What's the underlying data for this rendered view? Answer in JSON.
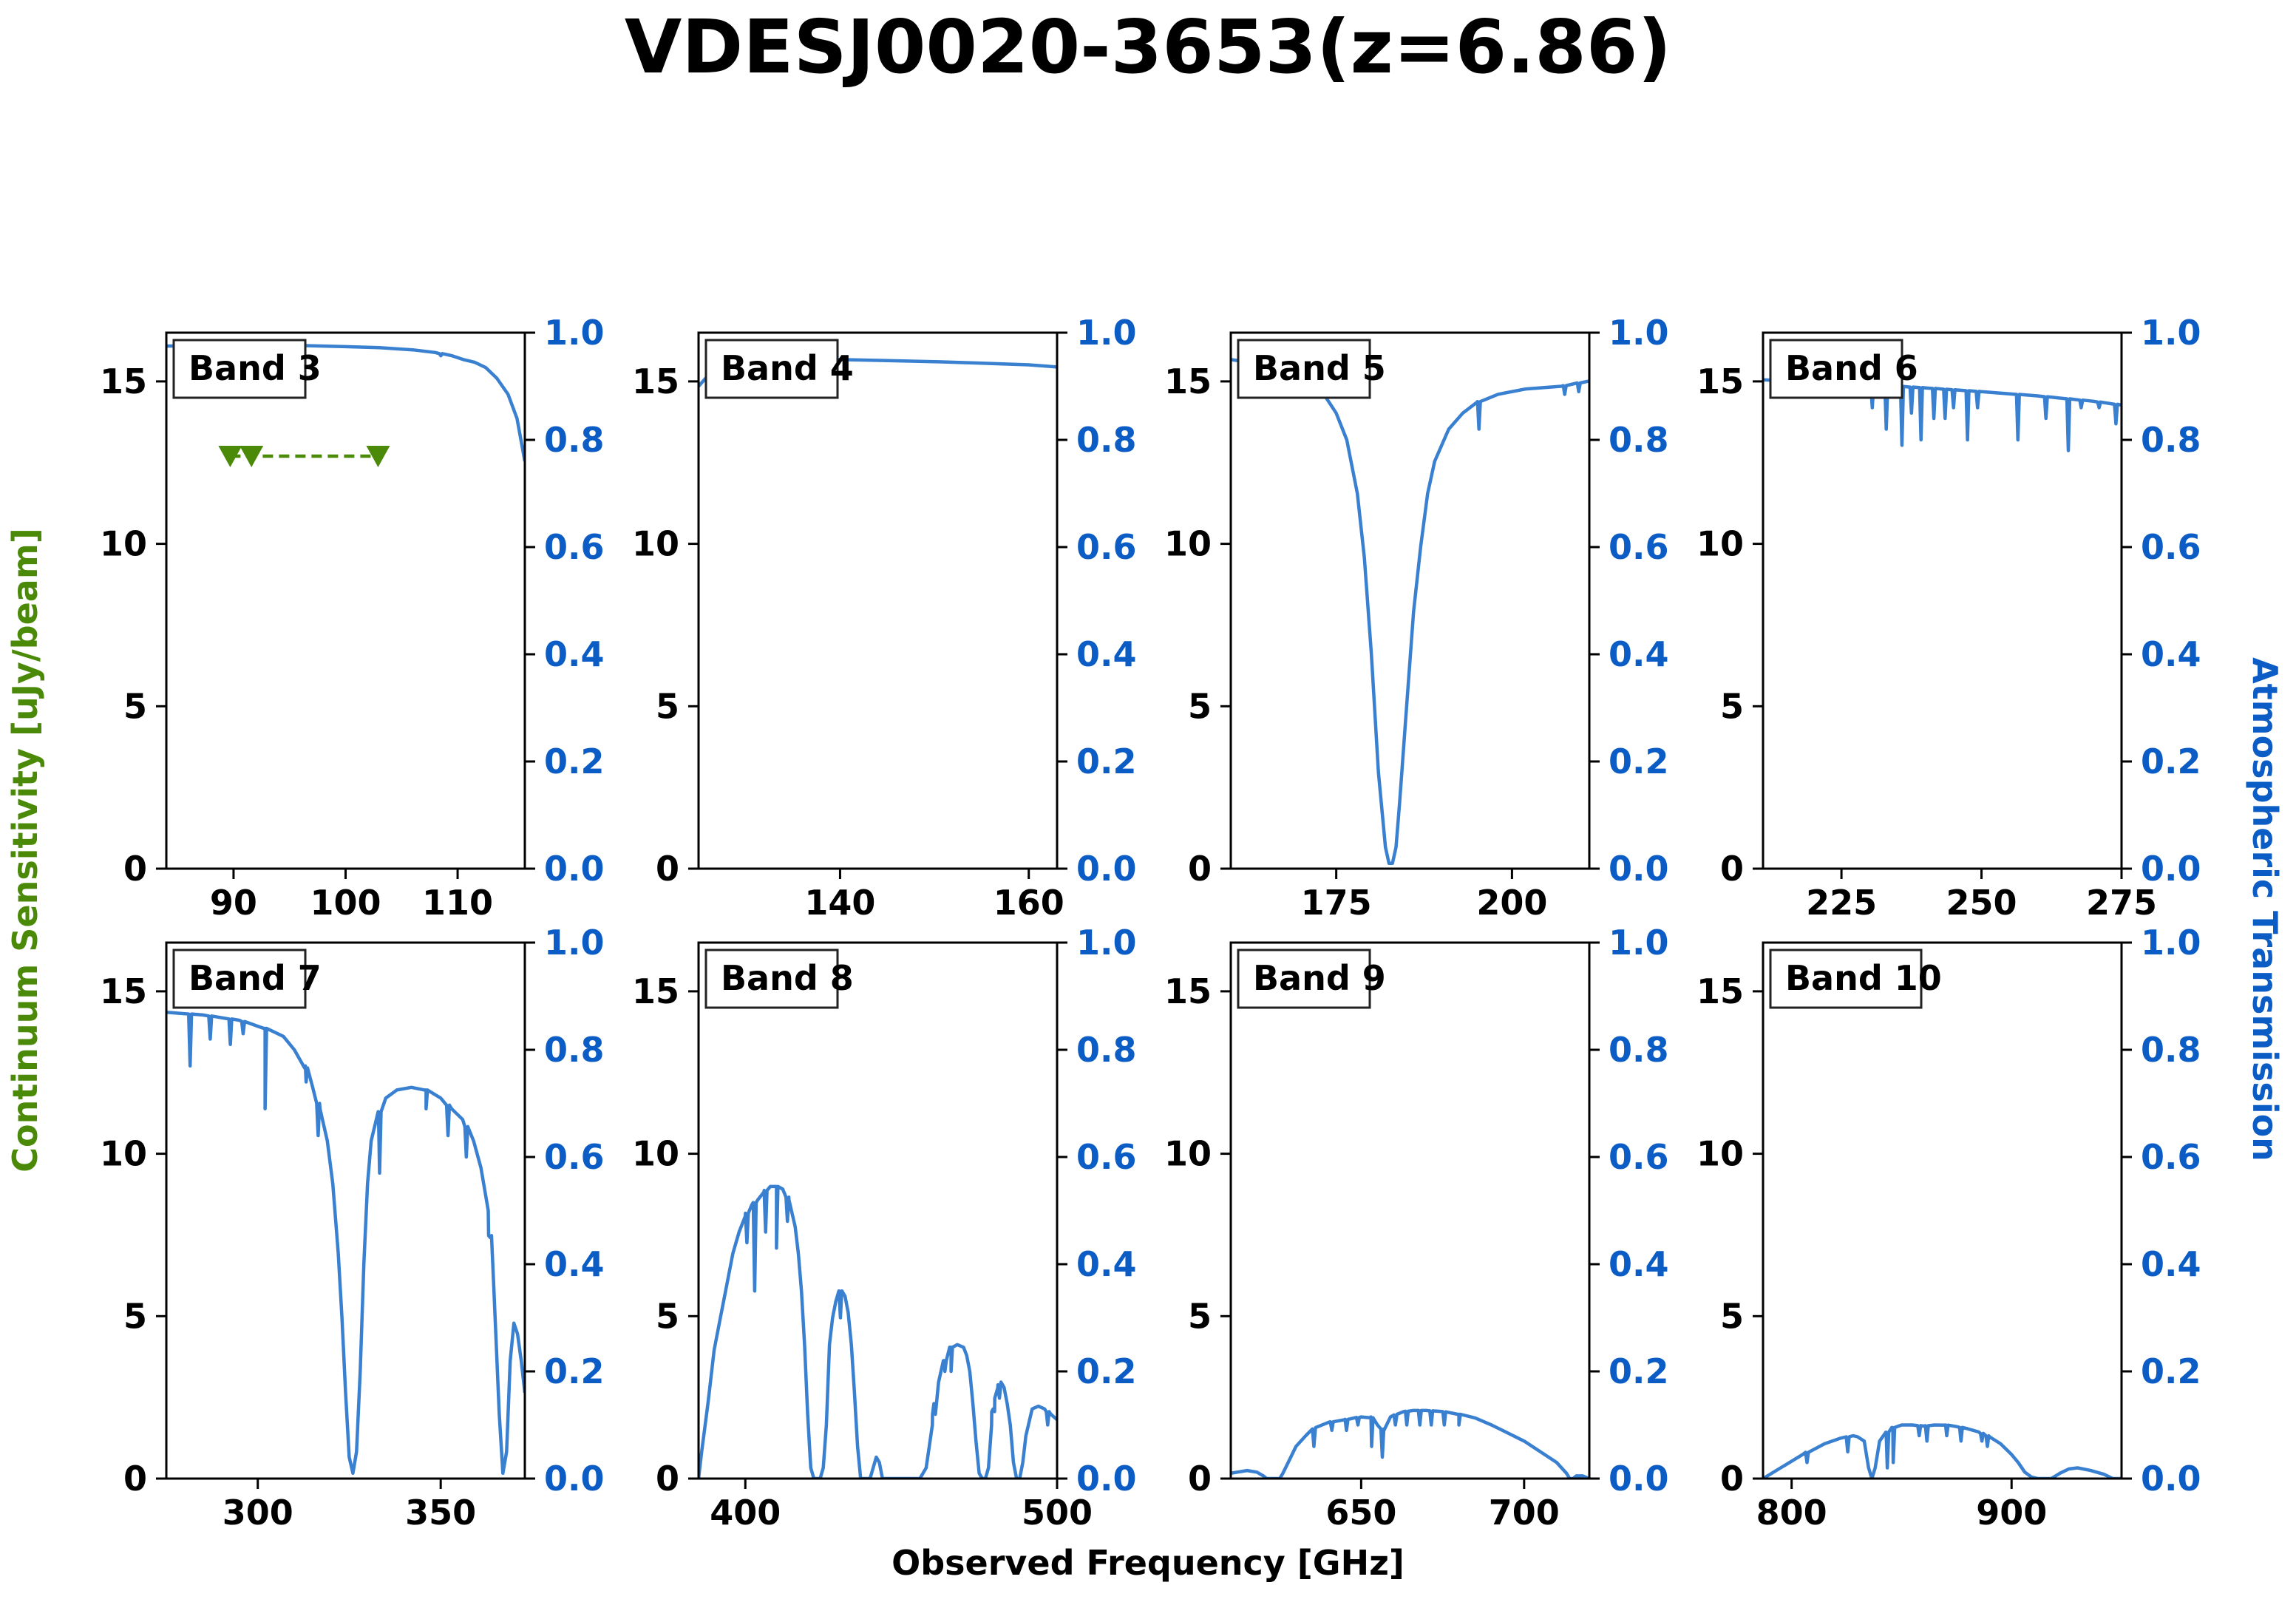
{
  "figure": {
    "title": "VDESJ0020-3653(z=6.86)",
    "xlabel": "Observed Frequency [GHz]",
    "ylabel_left": "Continuum Sensitivity [uJy/beam]",
    "ylabel_right": "Atmospheric Transmission"
  },
  "colors": {
    "transmission": "#3a80d0",
    "sensitivity": "#4b8a08",
    "right_axis": "#0b5cc4",
    "frame": "#000000"
  },
  "chart_data": [
    {
      "type": "line",
      "band": "Band 3",
      "xlim": [
        84,
        116
      ],
      "xticks": [
        90,
        100,
        110
      ],
      "ylim_left": [
        0,
        16.5
      ],
      "yticks_left": [
        0,
        5,
        10,
        15
      ],
      "ylim_right": [
        0,
        1
      ],
      "yticks_right": [
        0.0,
        0.2,
        0.4,
        0.6,
        0.8,
        1.0
      ],
      "transmission": {
        "x": [
          84,
          88,
          92,
          96,
          100,
          103,
          106,
          108,
          109.5,
          110.5,
          111.5,
          112.5,
          113.5,
          114.5,
          115.3,
          116
        ],
        "y": [
          0.975,
          0.976,
          0.977,
          0.976,
          0.974,
          0.972,
          0.968,
          0.963,
          0.957,
          0.95,
          0.945,
          0.935,
          0.915,
          0.885,
          0.84,
          0.76
        ],
        "dips": [
          [
            95.5,
            0.968
          ],
          [
            108.5,
            0.957
          ]
        ]
      },
      "sensitivity_limits": {
        "x": [
          89.7,
          91.6,
          102.9
        ],
        "y": [
          12.7,
          12.7,
          12.7
        ],
        "style": "dashed",
        "marker": "down-triangle"
      }
    },
    {
      "type": "line",
      "band": "Band 4",
      "xlim": [
        125,
        163
      ],
      "xticks": [
        140,
        160
      ],
      "ylim_left": [
        0,
        16.5
      ],
      "yticks_left": [
        0,
        5,
        10,
        15
      ],
      "ylim_right": [
        0,
        1
      ],
      "yticks_right": [
        0.0,
        0.2,
        0.4,
        0.6,
        0.8,
        1.0
      ],
      "transmission": {
        "x": [
          125,
          126,
          127,
          128.5,
          131,
          135,
          140,
          145,
          150,
          155,
          160,
          163
        ],
        "y": [
          0.9,
          0.92,
          0.93,
          0.935,
          0.94,
          0.945,
          0.95,
          0.948,
          0.946,
          0.943,
          0.94,
          0.936
        ]
      }
    },
    {
      "type": "line",
      "band": "Band 5",
      "xlim": [
        160,
        211
      ],
      "xticks": [
        175,
        200
      ],
      "ylim_left": [
        0,
        16.5
      ],
      "yticks_left": [
        0,
        5,
        10,
        15
      ],
      "ylim_right": [
        0,
        1
      ],
      "yticks_right": [
        0.0,
        0.2,
        0.4,
        0.6,
        0.8,
        1.0
      ],
      "transmission": {
        "x": [
          160,
          165,
          168,
          171,
          173,
          175,
          176.5,
          178,
          179,
          180,
          181,
          182,
          182.5,
          183,
          183.5,
          184,
          185,
          186,
          187,
          188,
          189,
          191,
          193,
          195,
          198,
          202,
          207,
          211
        ],
        "y": [
          0.95,
          0.94,
          0.93,
          0.91,
          0.89,
          0.85,
          0.8,
          0.7,
          0.58,
          0.4,
          0.18,
          0.04,
          0.01,
          0.01,
          0.04,
          0.12,
          0.3,
          0.48,
          0.6,
          0.7,
          0.76,
          0.82,
          0.85,
          0.87,
          0.885,
          0.895,
          0.9,
          0.91
        ],
        "dips": [
          [
            167.5,
            0.88
          ],
          [
            195.3,
            0.82
          ],
          [
            207.5,
            0.885
          ],
          [
            209.5,
            0.89
          ]
        ]
      }
    },
    {
      "type": "line",
      "band": "Band 6",
      "xlim": [
        211,
        275
      ],
      "xticks": [
        225,
        250,
        275
      ],
      "ylim_left": [
        0,
        16.5
      ],
      "yticks_left": [
        0,
        5,
        10,
        15
      ],
      "ylim_right": [
        0,
        1
      ],
      "yticks_right": [
        0.0,
        0.2,
        0.4,
        0.6,
        0.8,
        1.0
      ],
      "transmission": {
        "x": [
          211,
          220,
          230,
          240,
          250,
          260,
          270,
          275
        ],
        "y": [
          0.912,
          0.908,
          0.903,
          0.897,
          0.89,
          0.882,
          0.872,
          0.865
        ],
        "dips": [
          [
            215.5,
            0.895
          ],
          [
            230.5,
            0.86
          ],
          [
            233,
            0.82
          ],
          [
            235.8,
            0.79
          ],
          [
            237.5,
            0.85
          ],
          [
            239.2,
            0.8
          ],
          [
            241.5,
            0.84
          ],
          [
            243.5,
            0.84
          ],
          [
            245,
            0.86
          ],
          [
            247.5,
            0.8
          ],
          [
            249.3,
            0.86
          ],
          [
            256.5,
            0.8
          ],
          [
            261.5,
            0.84
          ],
          [
            265.5,
            0.78
          ],
          [
            267.8,
            0.86
          ],
          [
            271,
            0.86
          ],
          [
            274,
            0.83
          ]
        ]
      }
    },
    {
      "type": "line",
      "band": "Band 7",
      "xlim": [
        275,
        373
      ],
      "xticks": [
        300,
        350
      ],
      "ylim_left": [
        0,
        16.5
      ],
      "yticks_left": [
        0,
        5,
        10,
        15
      ],
      "ylim_right": [
        0,
        1
      ],
      "yticks_right": [
        0.0,
        0.2,
        0.4,
        0.6,
        0.8,
        1.0
      ],
      "transmission": {
        "x": [
          275,
          285,
          295,
          302,
          307,
          310,
          313,
          315,
          317,
          319,
          320.5,
          322,
          323,
          324,
          325,
          326,
          327,
          328,
          329,
          330,
          331,
          333,
          335,
          338,
          342,
          346,
          350,
          353,
          356,
          359,
          361,
          363,
          364.5,
          366,
          367,
          368,
          369,
          370,
          371,
          372,
          373
        ],
        "y": [
          0.87,
          0.865,
          0.855,
          0.84,
          0.825,
          0.8,
          0.77,
          0.73,
          0.69,
          0.63,
          0.55,
          0.42,
          0.3,
          0.16,
          0.04,
          0.01,
          0.05,
          0.2,
          0.4,
          0.55,
          0.63,
          0.68,
          0.71,
          0.725,
          0.73,
          0.725,
          0.71,
          0.69,
          0.67,
          0.63,
          0.58,
          0.5,
          0.36,
          0.12,
          0.01,
          0.05,
          0.22,
          0.29,
          0.27,
          0.22,
          0.16
        ],
        "dips": [
          [
            281.5,
            0.77
          ],
          [
            287,
            0.82
          ],
          [
            292.5,
            0.81
          ],
          [
            296,
            0.83
          ],
          [
            302,
            0.69
          ],
          [
            313.2,
            0.74
          ],
          [
            316.5,
            0.64
          ],
          [
            333.3,
            0.57
          ],
          [
            346,
            0.69
          ],
          [
            352,
            0.64
          ],
          [
            357,
            0.6
          ],
          [
            363.5,
            0.45
          ]
        ]
      }
    },
    {
      "type": "line",
      "band": "Band 8",
      "xlim": [
        385,
        500
      ],
      "xticks": [
        400,
        500
      ],
      "ylim_left": [
        0,
        16.5
      ],
      "yticks_left": [
        0,
        5,
        10,
        15
      ],
      "ylim_right": [
        0,
        1
      ],
      "yticks_right": [
        0.0,
        0.2,
        0.4,
        0.6,
        0.8,
        1.0
      ],
      "transmission": {
        "x": [
          385,
          386,
          388,
          390,
          392,
          394,
          396,
          398,
          400,
          402,
          404,
          406,
          408,
          410,
          412,
          414,
          416,
          417,
          418,
          419,
          420,
          421,
          422,
          423,
          424,
          425,
          426,
          427,
          428,
          429,
          430,
          431,
          432,
          433,
          434,
          435,
          436,
          437,
          438,
          440,
          441,
          442,
          443,
          444,
          446,
          448,
          450,
          452,
          454,
          456,
          458,
          460,
          462,
          464,
          466,
          468,
          470,
          471,
          472,
          473,
          474,
          475,
          476,
          477,
          478,
          479,
          480,
          481,
          482,
          483,
          484,
          485,
          486,
          487,
          488,
          489,
          490,
          492,
          494,
          496,
          498,
          500
        ],
        "y": [
          0.0,
          0.05,
          0.14,
          0.24,
          0.3,
          0.36,
          0.42,
          0.46,
          0.49,
          0.51,
          0.52,
          0.535,
          0.545,
          0.545,
          0.54,
          0.52,
          0.47,
          0.42,
          0.35,
          0.25,
          0.12,
          0.02,
          0.0,
          0.0,
          0.0,
          0.02,
          0.1,
          0.25,
          0.3,
          0.33,
          0.35,
          0.35,
          0.34,
          0.31,
          0.25,
          0.16,
          0.06,
          0.0,
          0.0,
          0.0,
          0.02,
          0.04,
          0.03,
          0.0,
          0.0,
          0.0,
          0.0,
          0.0,
          0.0,
          0.0,
          0.02,
          0.1,
          0.18,
          0.22,
          0.245,
          0.25,
          0.245,
          0.23,
          0.2,
          0.14,
          0.07,
          0.01,
          0.0,
          0.0,
          0.02,
          0.1,
          0.15,
          0.17,
          0.18,
          0.17,
          0.14,
          0.1,
          0.03,
          0.0,
          0.0,
          0.03,
          0.08,
          0.13,
          0.135,
          0.13,
          0.12,
          0.11
        ],
        "dips": [
          [
            400.5,
            0.44
          ],
          [
            403,
            0.35
          ],
          [
            406.5,
            0.46
          ],
          [
            410,
            0.43
          ],
          [
            413.5,
            0.48
          ],
          [
            430.5,
            0.3
          ],
          [
            460.5,
            0.14
          ],
          [
            464,
            0.2
          ],
          [
            466,
            0.2
          ],
          [
            479.5,
            0.13
          ],
          [
            481.5,
            0.15
          ],
          [
            497,
            0.1
          ]
        ]
      }
    },
    {
      "type": "line",
      "band": "Band 9",
      "xlim": [
        610,
        720
      ],
      "xticks": [
        650,
        700
      ],
      "ylim_left": [
        0,
        16.5
      ],
      "yticks_left": [
        0,
        5,
        10,
        15
      ],
      "ylim_right": [
        0,
        1
      ],
      "yticks_right": [
        0.0,
        0.2,
        0.4,
        0.6,
        0.8,
        1.0
      ],
      "transmission": {
        "x": [
          610,
          612,
          615,
          618,
          620,
          621,
          623,
          625,
          626,
          628,
          630,
          633,
          636,
          640,
          645,
          650,
          653,
          655,
          657,
          659,
          661,
          663,
          666,
          670,
          675,
          680,
          685,
          690,
          695,
          700,
          705,
          710,
          713,
          714,
          715,
          716,
          718,
          720
        ],
        "y": [
          0.01,
          0.012,
          0.015,
          0.012,
          0.005,
          0.0,
          0.0,
          0.0,
          0.01,
          0.035,
          0.06,
          0.08,
          0.095,
          0.105,
          0.11,
          0.115,
          0.115,
          0.1,
          0.09,
          0.115,
          0.12,
          0.125,
          0.127,
          0.127,
          0.125,
          0.12,
          0.113,
          0.1,
          0.085,
          0.07,
          0.05,
          0.03,
          0.01,
          0.0,
          0.0,
          0.005,
          0.005,
          0.0
        ],
        "dips": [
          [
            635.5,
            0.06
          ],
          [
            641,
            0.09
          ],
          [
            645.5,
            0.09
          ],
          [
            649,
            0.1
          ],
          [
            653.2,
            0.06
          ],
          [
            656.5,
            0.04
          ],
          [
            660.5,
            0.1
          ],
          [
            664,
            0.1
          ],
          [
            668,
            0.1
          ],
          [
            671.5,
            0.1
          ],
          [
            675.5,
            0.1
          ],
          [
            680,
            0.1
          ]
        ]
      }
    },
    {
      "type": "line",
      "band": "Band 10",
      "xlim": [
        787,
        950
      ],
      "xticks": [
        800,
        900
      ],
      "ylim_left": [
        0,
        16.5
      ],
      "yticks_left": [
        0,
        5,
        10,
        15
      ],
      "ylim_right": [
        0,
        1
      ],
      "yticks_right": [
        0.0,
        0.2,
        0.4,
        0.6,
        0.8,
        1.0
      ],
      "transmission": {
        "x": [
          787,
          795,
          805,
          815,
          822,
          828,
          830,
          833,
          835,
          836.5,
          838,
          840,
          843,
          846,
          850,
          855,
          860,
          865,
          870,
          875,
          880,
          885,
          890,
          895,
          900,
          903,
          906,
          909,
          912,
          918,
          922,
          926,
          930,
          936,
          942,
          946,
          950
        ],
        "y": [
          0.0,
          0.02,
          0.045,
          0.065,
          0.075,
          0.08,
          0.078,
          0.07,
          0.02,
          0.0,
          0.02,
          0.07,
          0.085,
          0.095,
          0.1,
          0.1,
          0.098,
          0.1,
          0.1,
          0.097,
          0.093,
          0.087,
          0.078,
          0.065,
          0.045,
          0.03,
          0.012,
          0.003,
          0.0,
          0.0,
          0.01,
          0.018,
          0.02,
          0.015,
          0.008,
          0.0,
          0.0
        ],
        "dips": [
          [
            807,
            0.03
          ],
          [
            825.5,
            0.05
          ],
          [
            843.5,
            0.02
          ],
          [
            846.2,
            0.03
          ],
          [
            858,
            0.08
          ],
          [
            861.5,
            0.07
          ],
          [
            870.5,
            0.08
          ],
          [
            877,
            0.07
          ],
          [
            886.5,
            0.07
          ],
          [
            889,
            0.06
          ]
        ]
      }
    }
  ]
}
